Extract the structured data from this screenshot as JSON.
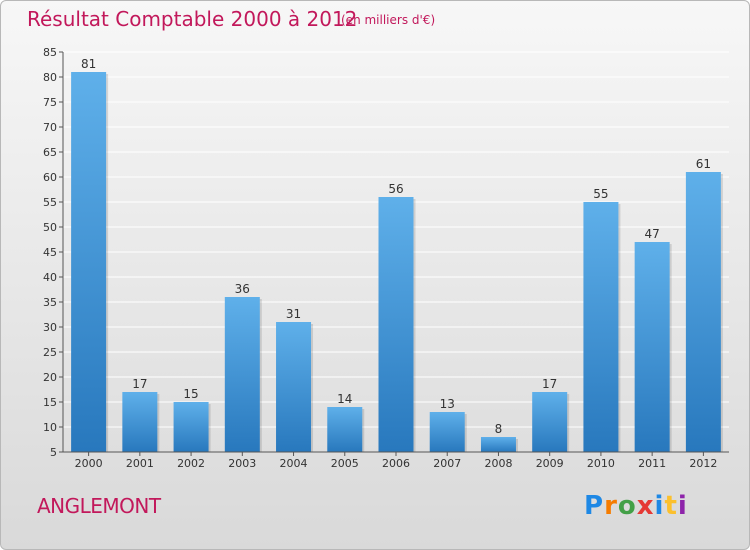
{
  "chart_data": {
    "type": "bar",
    "title": "Résultat Comptable 2000 à 2012",
    "subtitle": "(en milliers d'€)",
    "categories": [
      "2000",
      "2001",
      "2002",
      "2003",
      "2004",
      "2005",
      "2006",
      "2007",
      "2008",
      "2009",
      "2010",
      "2011",
      "2012"
    ],
    "values": [
      81,
      17,
      15,
      36,
      31,
      14,
      56,
      13,
      8,
      17,
      55,
      47,
      61
    ],
    "ylim": [
      5,
      85
    ],
    "yticks": [
      5,
      10,
      15,
      20,
      25,
      30,
      35,
      40,
      45,
      50,
      55,
      60,
      65,
      70,
      75,
      80,
      85
    ],
    "grid": true,
    "xlabel": "",
    "ylabel": ""
  },
  "commune": "ANGLEMONT",
  "logo": {
    "text": "Proxiti",
    "letters": [
      {
        "ch": "P",
        "color": "#1e88e5"
      },
      {
        "ch": "r",
        "color": "#f57c00"
      },
      {
        "ch": "o",
        "color": "#43a047"
      },
      {
        "ch": "x",
        "color": "#e53935"
      },
      {
        "ch": "i",
        "color": "#1e88e5"
      },
      {
        "ch": "t",
        "color": "#fbc02d"
      },
      {
        "ch": "i",
        "color": "#8e24aa"
      }
    ]
  },
  "colors": {
    "accent": "#c2185b",
    "bar_light": "#5dade8",
    "bar_dark": "#2a7bbf"
  }
}
